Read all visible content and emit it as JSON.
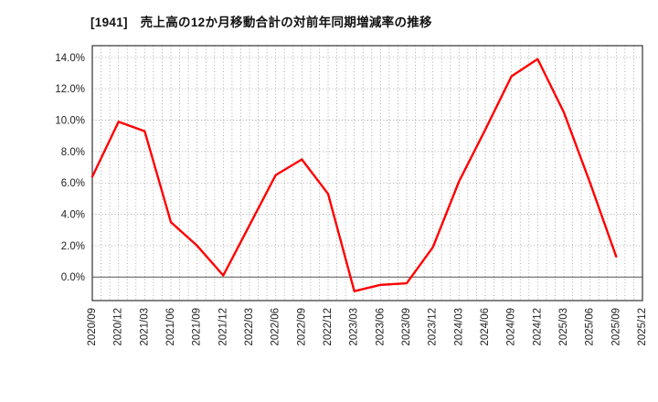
{
  "chart_data": {
    "type": "line",
    "title": "[1941]　売上高の12か月移動合計の対前年同期増減率の推移",
    "series_name": "売上高の12か月移動合計の対前年同期増減率",
    "x": [
      "2020/09",
      "2020/12",
      "2021/03",
      "2021/06",
      "2021/09",
      "2021/12",
      "2022/03",
      "2022/06",
      "2022/09",
      "2022/12",
      "2023/03",
      "2023/06",
      "2023/09",
      "2023/12",
      "2024/03",
      "2024/06",
      "2024/09",
      "2024/12",
      "2025/03",
      "2025/06",
      "2025/09",
      "2025/12"
    ],
    "values": [
      6.4,
      9.9,
      9.3,
      3.5,
      2.0,
      0.1,
      3.3,
      6.5,
      7.5,
      5.3,
      -0.9,
      -0.5,
      -0.4,
      1.9,
      6.1,
      9.4,
      12.8,
      13.9,
      10.5,
      6.0,
      1.3,
      null
    ],
    "y_tick_values": [
      0,
      2,
      4,
      6,
      8,
      10,
      12,
      14
    ],
    "y_tick_labels": [
      "0.0%",
      "2.0%",
      "4.0%",
      "6.0%",
      "8.0%",
      "10.0%",
      "12.0%",
      "14.0%"
    ],
    "ylim": [
      -1.5,
      14.75
    ],
    "xlabel": "",
    "ylabel": "",
    "grid": "dotted",
    "legend": "none",
    "line_color": "#ff0000",
    "grid_color": "#999999",
    "zero_line_color": "#555555",
    "border_color": "#333333",
    "tick_label_color": "#222222",
    "minor_vertical_divisions_per_interval": 3
  }
}
